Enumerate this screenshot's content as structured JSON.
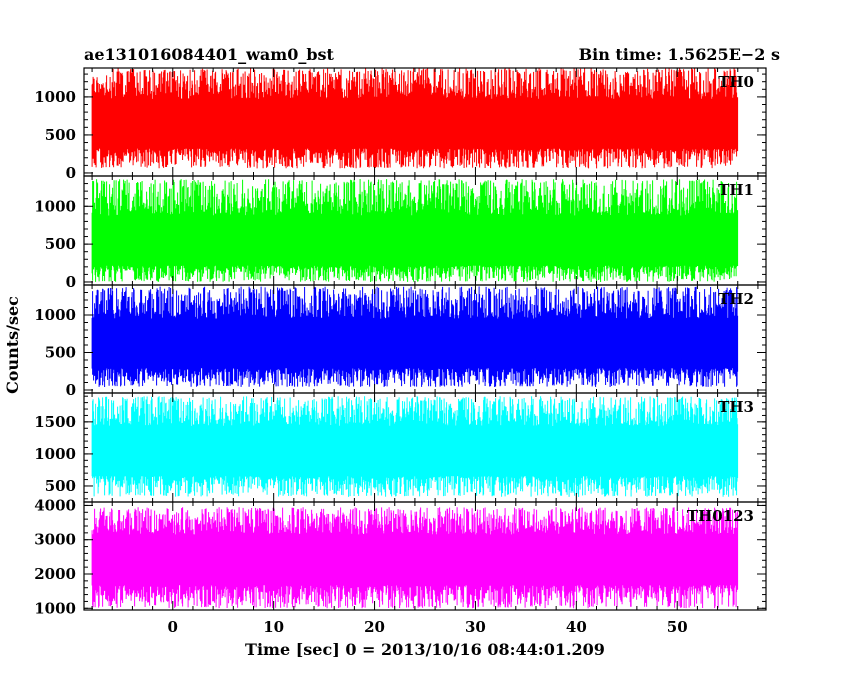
{
  "header": {
    "left_title": "ae131016084401_wam0_bst",
    "right_title": "Bin time: 1.5625E−2 s"
  },
  "axes": {
    "ylabel": "Counts/sec",
    "xlabel": "Time [sec] 0 = 2013/10/16 08:44:01.209"
  },
  "chart_data": {
    "type": "line",
    "xlim": [
      -8.8,
      58.8
    ],
    "x_ticks": [
      0,
      10,
      20,
      30,
      40,
      50
    ],
    "x_tick_labels": [
      "0",
      "10",
      "20",
      "30",
      "40",
      "50"
    ],
    "data_x_range": [
      -8.0,
      56.0
    ],
    "panels": [
      {
        "name": "TH0",
        "color": "#ff0000",
        "ylim": [
          -40,
          1380
        ],
        "y_ticks": [
          0,
          500,
          1000
        ],
        "y_tick_labels": [
          "0",
          "500",
          "1000"
        ],
        "baseline": 640,
        "noise_low": 60,
        "noise_high": 1380
      },
      {
        "name": "TH1",
        "color": "#00ff00",
        "ylim": [
          -40,
          1400
        ],
        "y_ticks": [
          0,
          500,
          1000
        ],
        "y_tick_labels": [
          "0",
          "500",
          "1000"
        ],
        "baseline": 480,
        "noise_low": 0,
        "noise_high": 1360
      },
      {
        "name": "TH2",
        "color": "#0000ff",
        "ylim": [
          -40,
          1400
        ],
        "y_ticks": [
          0,
          500,
          1000
        ],
        "y_tick_labels": [
          "0",
          "500",
          "1000"
        ],
        "baseline": 600,
        "noise_low": 40,
        "noise_high": 1380
      },
      {
        "name": "TH3",
        "color": "#00ffff",
        "ylim": [
          250,
          1950
        ],
        "y_ticks": [
          500,
          1000,
          1500
        ],
        "y_tick_labels": [
          "500",
          "1000",
          "1500"
        ],
        "baseline": 1050,
        "noise_low": 330,
        "noise_high": 1900
      },
      {
        "name": "TH0123",
        "color": "#ff00ff",
        "ylim": [
          950,
          4100
        ],
        "y_ticks": [
          1000,
          2000,
          3000,
          4000
        ],
        "y_tick_labels": [
          "1000",
          "2000",
          "3000",
          "4000"
        ],
        "baseline": 2500,
        "noise_low": 1000,
        "noise_high": 3950
      }
    ]
  }
}
